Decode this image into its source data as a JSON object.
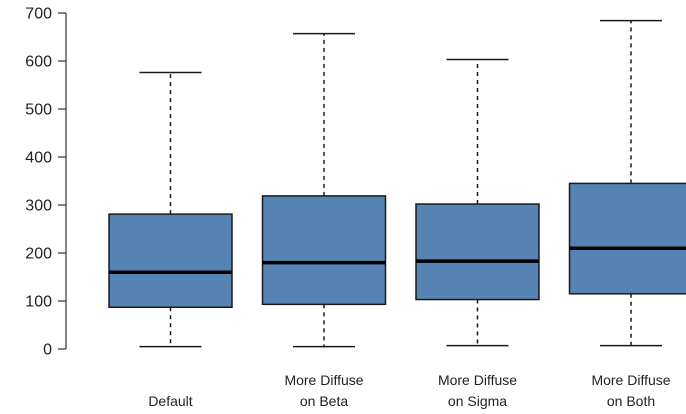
{
  "chart_data": {
    "type": "boxplot",
    "title": "",
    "xlabel": "",
    "ylabel": "",
    "ylim": [
      0,
      700
    ],
    "yticks": [
      0,
      100,
      200,
      300,
      400,
      500,
      600,
      700
    ],
    "grid": false,
    "legend": "none",
    "box_fill_color": "#5584b4",
    "box_stroke_color": "#1a1a1a",
    "median_color": "#000000",
    "categories": [
      {
        "label_lines": [
          "Default"
        ],
        "whisker_low": 5,
        "q1": 87,
        "median": 160,
        "q3": 281,
        "whisker_high": 576
      },
      {
        "label_lines": [
          "More Diffuse",
          "on Beta"
        ],
        "whisker_low": 5,
        "q1": 93,
        "median": 180,
        "q3": 319,
        "whisker_high": 657
      },
      {
        "label_lines": [
          "More Diffuse",
          "on Sigma"
        ],
        "whisker_low": 7,
        "q1": 103,
        "median": 183,
        "q3": 302,
        "whisker_high": 603
      },
      {
        "label_lines": [
          "More Diffuse",
          "on Both"
        ],
        "whisker_low": 7,
        "q1": 115,
        "median": 210,
        "q3": 345,
        "whisker_high": 684
      }
    ]
  }
}
